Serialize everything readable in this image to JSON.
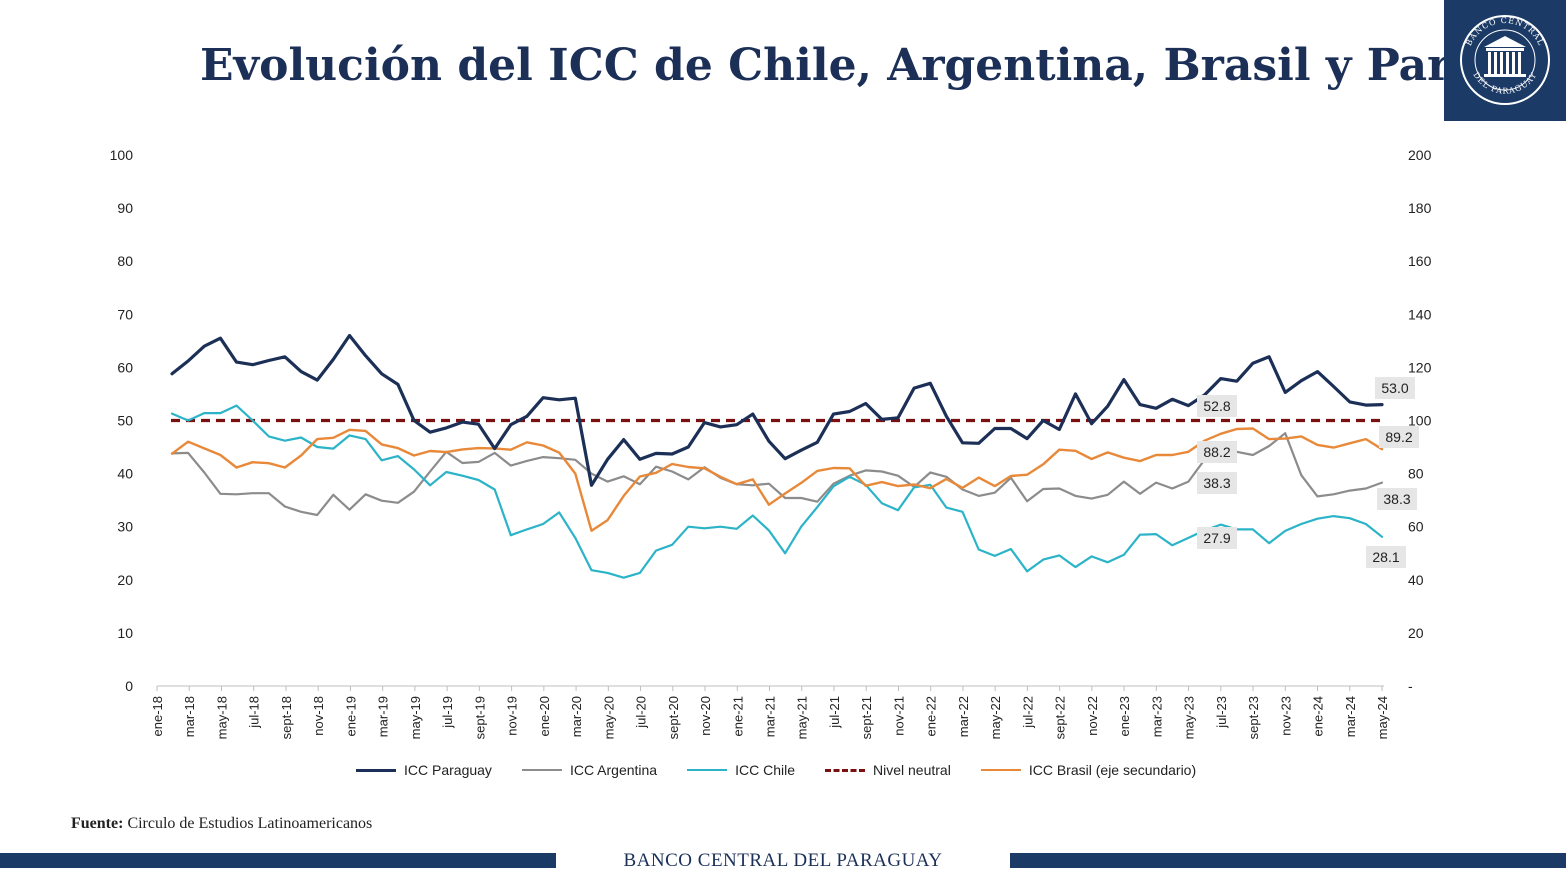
{
  "title": "Evolución del ICC de Chile, Argentina, Brasil y Paraguay",
  "logo": {
    "name": "Banco Central del Paraguay seal",
    "text_top": "BANCO CENTRAL",
    "text_bottom": "DEL PARAGUAY",
    "icon": "building-columns-icon"
  },
  "source": {
    "label": "Fuente:",
    "text": " Circulo de Estudios Latinoamericanos"
  },
  "footer": {
    "text": "BANCO CENTRAL DEL PARAGUAY"
  },
  "colors": {
    "paraguay": "#1b2f57",
    "argentina": "#8c8c8c",
    "chile": "#2bb3c8",
    "neutral": "#7a1010",
    "brasil": "#e8893a",
    "label_bg": "#e6e6e6",
    "brand": "#1b3a66"
  },
  "chart_data": {
    "type": "line",
    "y_axis_primary": {
      "range": [
        0,
        100
      ],
      "ticks": [
        "0",
        "10",
        "20",
        "30",
        "40",
        "50",
        "60",
        "70",
        "80",
        "90",
        "100"
      ]
    },
    "y_axis_secondary": {
      "range": [
        0,
        200
      ],
      "ticks": [
        "-",
        "20",
        "40",
        "60",
        "80",
        "100",
        "120",
        "140",
        "160",
        "180",
        "200"
      ]
    },
    "x_labels": [
      "ene-18",
      "mar-18",
      "may-18",
      "jul-18",
      "sept-18",
      "nov-18",
      "ene-19",
      "mar-19",
      "may-19",
      "jul-19",
      "sept-19",
      "nov-19",
      "ene-20",
      "mar-20",
      "may-20",
      "jul-20",
      "sept-20",
      "nov-20",
      "ene-21",
      "mar-21",
      "may-21",
      "jul-21",
      "sept-21",
      "nov-21",
      "ene-22",
      "mar-22",
      "may-22",
      "jul-22",
      "sept-22",
      "nov-22",
      "ene-23",
      "mar-23",
      "may-23",
      "jul-23",
      "sept-23",
      "nov-23",
      "ene-24",
      "mar-24",
      "may-24"
    ],
    "grid": false,
    "legend_position": "bottom",
    "series": [
      {
        "name": "ICC Paraguay",
        "axis": "primary",
        "color_key": "paraguay",
        "style": "solid-thick",
        "values": [
          58.8,
          61.2,
          64.0,
          65.5,
          61.0,
          60.5,
          61.3,
          62.0,
          59.2,
          57.6,
          61.5,
          66.0,
          62.2,
          58.8,
          56.8,
          50.0,
          47.8,
          48.6,
          49.7,
          49.3,
          44.7,
          49.2,
          50.8,
          54.3,
          53.9,
          54.2,
          37.8,
          42.7,
          46.4,
          42.7,
          43.8,
          43.7,
          45.0,
          49.6,
          48.8,
          49.2,
          51.2,
          46.1,
          42.8,
          44.4,
          45.9,
          51.2,
          51.7,
          53.2,
          50.2,
          50.5,
          56.1,
          57.0,
          50.8,
          45.8,
          45.7,
          48.5,
          48.5,
          46.6,
          50.0,
          48.3,
          55.0,
          49.4,
          52.7,
          57.7,
          53.0,
          52.3,
          54.0,
          52.8,
          54.8,
          57.9,
          57.4,
          60.8,
          62.0,
          55.3,
          57.5,
          59.2,
          56.4,
          53.5,
          52.9,
          53.0
        ],
        "end_label": "53.0",
        "mid_label": "52.8"
      },
      {
        "name": "ICC Argentina",
        "axis": "primary",
        "color_key": "argentina",
        "style": "solid-thin",
        "values": [
          43.8,
          43.9,
          40.2,
          36.2,
          36.1,
          36.3,
          36.3,
          33.8,
          32.8,
          32.2,
          36.0,
          33.2,
          36.1,
          34.9,
          34.5,
          36.6,
          40.4,
          44.1,
          42.0,
          42.2,
          43.9,
          41.5,
          42.4,
          43.1,
          42.9,
          42.6,
          40.0,
          38.5,
          39.5,
          38.0,
          41.3,
          40.4,
          38.9,
          41.2,
          39.2,
          38.0,
          37.8,
          38.1,
          35.4,
          35.4,
          34.7,
          38.1,
          39.6,
          40.6,
          40.4,
          39.6,
          37.5,
          40.2,
          39.4,
          37.0,
          35.8,
          36.4,
          39.2,
          34.8,
          37.1,
          37.2,
          35.8,
          35.3,
          36.0,
          38.5,
          36.2,
          38.3,
          37.2,
          38.5,
          42.6,
          44.5,
          44.1,
          43.5,
          45.2,
          47.6,
          39.7,
          35.7,
          36.1,
          36.8,
          37.2,
          38.3
        ],
        "end_label": "38.3",
        "mid_label": "38.3"
      },
      {
        "name": "ICC Chile",
        "axis": "primary",
        "color_key": "chile",
        "style": "solid-thin",
        "values": [
          51.3,
          50.0,
          51.4,
          51.4,
          52.8,
          50.0,
          47.0,
          46.2,
          46.8,
          45.0,
          44.7,
          47.2,
          46.5,
          42.5,
          43.3,
          40.8,
          37.8,
          40.3,
          39.6,
          38.8,
          37.0,
          28.4,
          29.5,
          30.5,
          32.7,
          27.9,
          21.8,
          21.3,
          20.4,
          21.3,
          25.5,
          26.6,
          30.0,
          29.7,
          30.0,
          29.6,
          32.1,
          29.3,
          25.0,
          30.0,
          33.7,
          37.6,
          39.4,
          37.9,
          34.4,
          33.1,
          37.4,
          37.9,
          33.6,
          32.8,
          25.7,
          24.5,
          25.8,
          21.6,
          23.8,
          24.6,
          22.4,
          24.4,
          23.3,
          24.7,
          28.5,
          28.6,
          26.5,
          27.9,
          29.3,
          30.4,
          29.5,
          29.5,
          26.9,
          29.2,
          30.5,
          31.5,
          32.0,
          31.6,
          30.5,
          28.1
        ],
        "end_label": "28.1",
        "mid_label": "27.9"
      },
      {
        "name": "Nivel neutral",
        "axis": "primary",
        "color_key": "neutral",
        "style": "dashed",
        "values": [
          50,
          50
        ]
      },
      {
        "name": "ICC Brasil (eje secundario)",
        "axis": "secondary",
        "color_key": "brasil",
        "style": "solid-medium",
        "values": [
          87.5,
          92.0,
          89.5,
          87.0,
          82.3,
          84.3,
          83.9,
          82.3,
          86.8,
          93.0,
          93.5,
          96.5,
          96.1,
          91.0,
          89.6,
          86.8,
          88.5,
          88.1,
          89.1,
          89.6,
          89.5,
          89.0,
          91.8,
          90.6,
          87.9,
          80.0,
          58.5,
          62.5,
          71.6,
          78.9,
          80.3,
          83.6,
          82.5,
          82.0,
          78.8,
          76.0,
          77.8,
          68.3,
          72.5,
          76.5,
          81.0,
          82.1,
          82.0,
          75.4,
          76.8,
          75.3,
          75.9,
          74.5,
          78.0,
          74.6,
          78.5,
          75.3,
          79.1,
          79.6,
          83.5,
          89.0,
          88.6,
          85.5,
          88.0,
          86.0,
          84.7,
          87.0,
          87.0,
          88.2,
          92.4,
          95.0,
          96.8,
          97.0,
          93.0,
          93.2,
          94.0,
          90.8,
          89.8,
          91.4,
          93.0,
          89.2
        ],
        "end_label": "89.2",
        "mid_label": "88.2"
      }
    ]
  }
}
